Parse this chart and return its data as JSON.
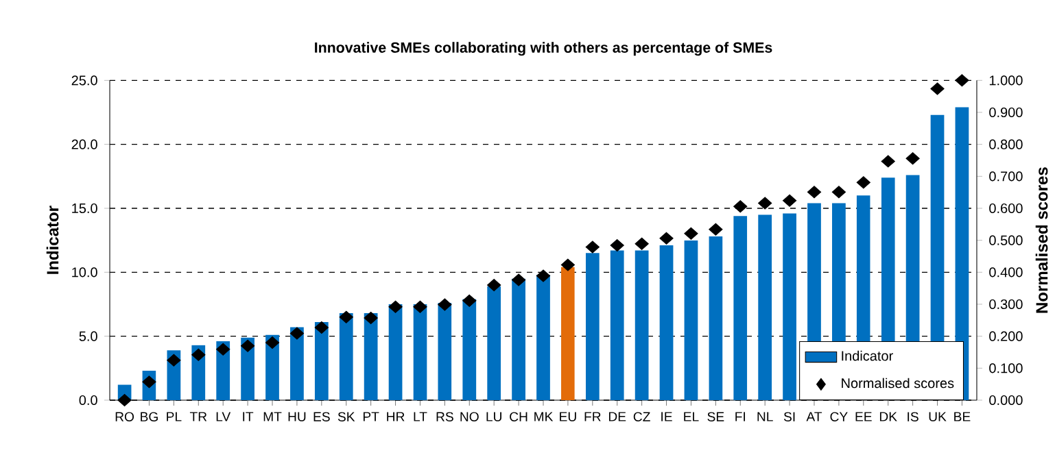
{
  "chart_data": {
    "type": "bar",
    "title": "Innovative SMEs collaborating with others as percentage of SMEs",
    "ylabel": "Indicator",
    "y2label": "Normalised scores",
    "categories": [
      "RO",
      "BG",
      "PL",
      "TR",
      "LV",
      "IT",
      "MT",
      "HU",
      "ES",
      "SK",
      "PT",
      "HR",
      "LT",
      "RS",
      "NO",
      "LU",
      "CH",
      "MK",
      "EU",
      "FR",
      "DE",
      "CZ",
      "IE",
      "EL",
      "SE",
      "FI",
      "NL",
      "SI",
      "AT",
      "CY",
      "EE",
      "DK",
      "IS",
      "UK",
      "BE"
    ],
    "series": [
      {
        "name": "Indicator",
        "color": "#0070c0",
        "colors": [
          "#0070c0",
          "#0070c0",
          "#0070c0",
          "#0070c0",
          "#0070c0",
          "#0070c0",
          "#0070c0",
          "#0070c0",
          "#0070c0",
          "#0070c0",
          "#0070c0",
          "#0070c0",
          "#0070c0",
          "#0070c0",
          "#0070c0",
          "#0070c0",
          "#0070c0",
          "#0070c0",
          "#e36c0a",
          "#0070c0",
          "#0070c0",
          "#0070c0",
          "#0070c0",
          "#0070c0",
          "#0070c0",
          "#0070c0",
          "#0070c0",
          "#0070c0",
          "#0070c0",
          "#0070c0",
          "#0070c0",
          "#0070c0",
          "#0070c0",
          "#0070c0",
          "#0070c0"
        ],
        "values": [
          1.2,
          2.3,
          3.9,
          4.3,
          4.6,
          4.9,
          5.1,
          5.7,
          6.1,
          6.8,
          6.8,
          7.5,
          7.5,
          7.6,
          7.9,
          8.9,
          9.5,
          9.8,
          10.4,
          11.5,
          11.7,
          11.7,
          12.1,
          12.5,
          12.8,
          14.4,
          14.5,
          14.6,
          15.4,
          15.4,
          16.0,
          17.4,
          17.6,
          22.3,
          22.9
        ]
      },
      {
        "name": "Normalised scores",
        "type": "scatter",
        "axis": "y2",
        "color": "#000000",
        "marker": "diamond",
        "values": [
          0.0,
          0.057,
          0.125,
          0.142,
          0.159,
          0.17,
          0.18,
          0.209,
          0.227,
          0.26,
          0.257,
          0.292,
          0.292,
          0.299,
          0.311,
          0.36,
          0.376,
          0.389,
          0.423,
          0.479,
          0.484,
          0.489,
          0.506,
          0.521,
          0.534,
          0.606,
          0.616,
          0.624,
          0.651,
          0.651,
          0.681,
          0.747,
          0.756,
          0.974,
          1.0
        ]
      }
    ],
    "ylim": [
      0,
      25
    ],
    "yticks": [
      {
        "value": 0,
        "label": "0.0"
      },
      {
        "value": 5,
        "label": "5.0"
      },
      {
        "value": 10,
        "label": "10.0"
      },
      {
        "value": 15,
        "label": "15.0"
      },
      {
        "value": 20,
        "label": "20.0"
      },
      {
        "value": 25,
        "label": "25.0"
      }
    ],
    "y2lim": [
      0,
      1
    ],
    "y2ticks": [
      {
        "value": 0,
        "label": "0.000"
      },
      {
        "value": 0.1,
        "label": "0.100"
      },
      {
        "value": 0.2,
        "label": "0.200"
      },
      {
        "value": 0.3,
        "label": "0.300"
      },
      {
        "value": 0.4,
        "label": "0.400"
      },
      {
        "value": 0.5,
        "label": "0.500"
      },
      {
        "value": 0.6,
        "label": "0.600"
      },
      {
        "value": 0.7,
        "label": "0.700"
      },
      {
        "value": 0.8,
        "label": "0.800"
      },
      {
        "value": 0.9,
        "label": "0.900"
      },
      {
        "value": 1,
        "label": "1.000"
      }
    ],
    "grid": "y",
    "legend": "bottom right"
  }
}
